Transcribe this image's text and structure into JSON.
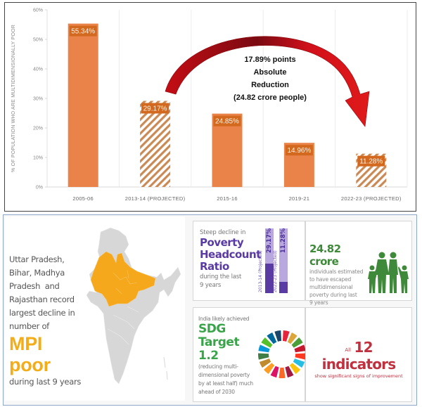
{
  "chart_data": {
    "type": "bar",
    "title": "",
    "xlabel": "",
    "ylabel": "% OF POPULATION WHO ARE MULTIDIMENSIONALLY POOR",
    "ylim": [
      0,
      60
    ],
    "yticks": [
      "0%",
      "10%",
      "20%",
      "30%",
      "40%",
      "50%",
      "60%"
    ],
    "ytick_values": [
      0,
      10,
      20,
      30,
      40,
      50,
      60
    ],
    "grid": "vertical category separators",
    "categories": [
      "2005-06",
      "2013-14 (PROJECTED)",
      "2015-16",
      "2019-21",
      "2022-23 (PROJECTED)"
    ],
    "values": [
      55.34,
      29.17,
      24.85,
      14.96,
      11.28
    ],
    "data_labels": [
      "55.34%",
      "29.17%",
      "24.85%",
      "14.96%",
      "11.28%"
    ],
    "projected": [
      false,
      true,
      false,
      false,
      true
    ],
    "bar_color": "#e9834a",
    "label_bg_color": "#d3691f",
    "hatch_color": "#c98a55",
    "annotation": {
      "lines": [
        "17.89% points",
        "Absolute",
        "Reduction",
        "(24.82 crore people)"
      ],
      "arrow_from": "2013-14 (PROJECTED)",
      "arrow_to": "2022-23 (PROJECTED)",
      "arrow_color": "#d0101a"
    }
  },
  "infographic": {
    "map_panel": {
      "lines": [
        "Uttar Pradesh,",
        "Bihar, Madhya",
        "Pradesh  and",
        "Rajasthan record",
        "largest decline in",
        "number of"
      ],
      "highlight": "MPI poor",
      "tail": "during last 9 years",
      "highlight_color": "#f3ad18",
      "map_color": "#d7d7d7"
    },
    "headcount_card": {
      "intro": "Steep decline in",
      "title_lines": [
        "Poverty",
        "Headcount",
        "Ratio"
      ],
      "tail_lines": [
        "during the last",
        "9 years"
      ],
      "bars": [
        {
          "label": "2013-14 (Projected)",
          "value_label": "29.17%",
          "value": 29.17
        },
        {
          "label": "2022-23 (Projected)",
          "value_label": "11.28%",
          "value": 11.28
        }
      ],
      "dark_color": "#5a3aa3",
      "light_color": "#b9a8e0"
    },
    "crore_card": {
      "title": "24.82 crore",
      "desc_lines": [
        "individuals estimated",
        "to have escaped",
        "multidimensional",
        "poverty during last",
        "9 years"
      ],
      "icon": "family-icon",
      "icon_color": "#3f8a3a"
    },
    "sdg_card": {
      "intro": "India likely achieved",
      "title_lines": [
        "SDG",
        "Target 1.2"
      ],
      "desc_lines": [
        "(reducing multi-",
        "dimensional poverty",
        "by at least half) much",
        "ahead of 2030"
      ],
      "icon": "sdg-wheel-icon",
      "wheel_colors": [
        "#e5243b",
        "#dda63a",
        "#4c9f38",
        "#c5192d",
        "#ff3a21",
        "#26bde2",
        "#fcc30b",
        "#a21942",
        "#fd6925",
        "#dd1367",
        "#fd9d24",
        "#bf8b2e",
        "#3f7e44",
        "#0a97d9",
        "#56c02b",
        "#00689d",
        "#19486a"
      ]
    },
    "indicators_card": {
      "prefix": "All",
      "title": "12 indicators",
      "subtitle": "show significant signs of improvement"
    }
  }
}
